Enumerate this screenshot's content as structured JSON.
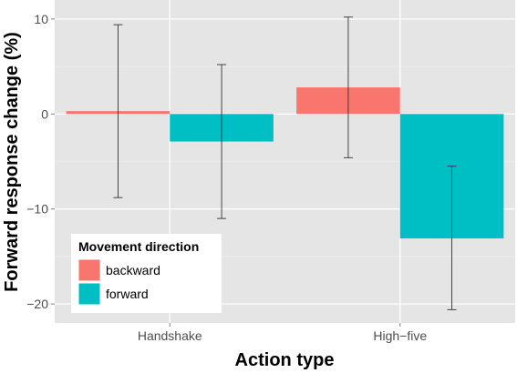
{
  "chart_data": {
    "type": "bar",
    "xlabel": "Action type",
    "ylabel": "Forward response change (%)",
    "categories": [
      "Handshake",
      "High−five"
    ],
    "ylim": [
      -22,
      12
    ],
    "yticks": [
      10,
      0,
      -10,
      -20
    ],
    "ytick_labels": [
      "10",
      "0",
      "−10",
      "−20"
    ],
    "grid": true,
    "legend": {
      "title": "Movement direction",
      "placement": "bottom-left"
    },
    "series": [
      {
        "name": "backward",
        "color": "#F8766D",
        "values": [
          0.3,
          2.8
        ],
        "error_low": [
          -8.8,
          -4.6
        ],
        "error_high": [
          9.4,
          10.2
        ]
      },
      {
        "name": "forward",
        "color": "#00BFC4",
        "values": [
          -2.9,
          -13.1
        ],
        "error_low": [
          -11.0,
          -20.6
        ],
        "error_high": [
          5.2,
          -5.5
        ]
      }
    ]
  }
}
